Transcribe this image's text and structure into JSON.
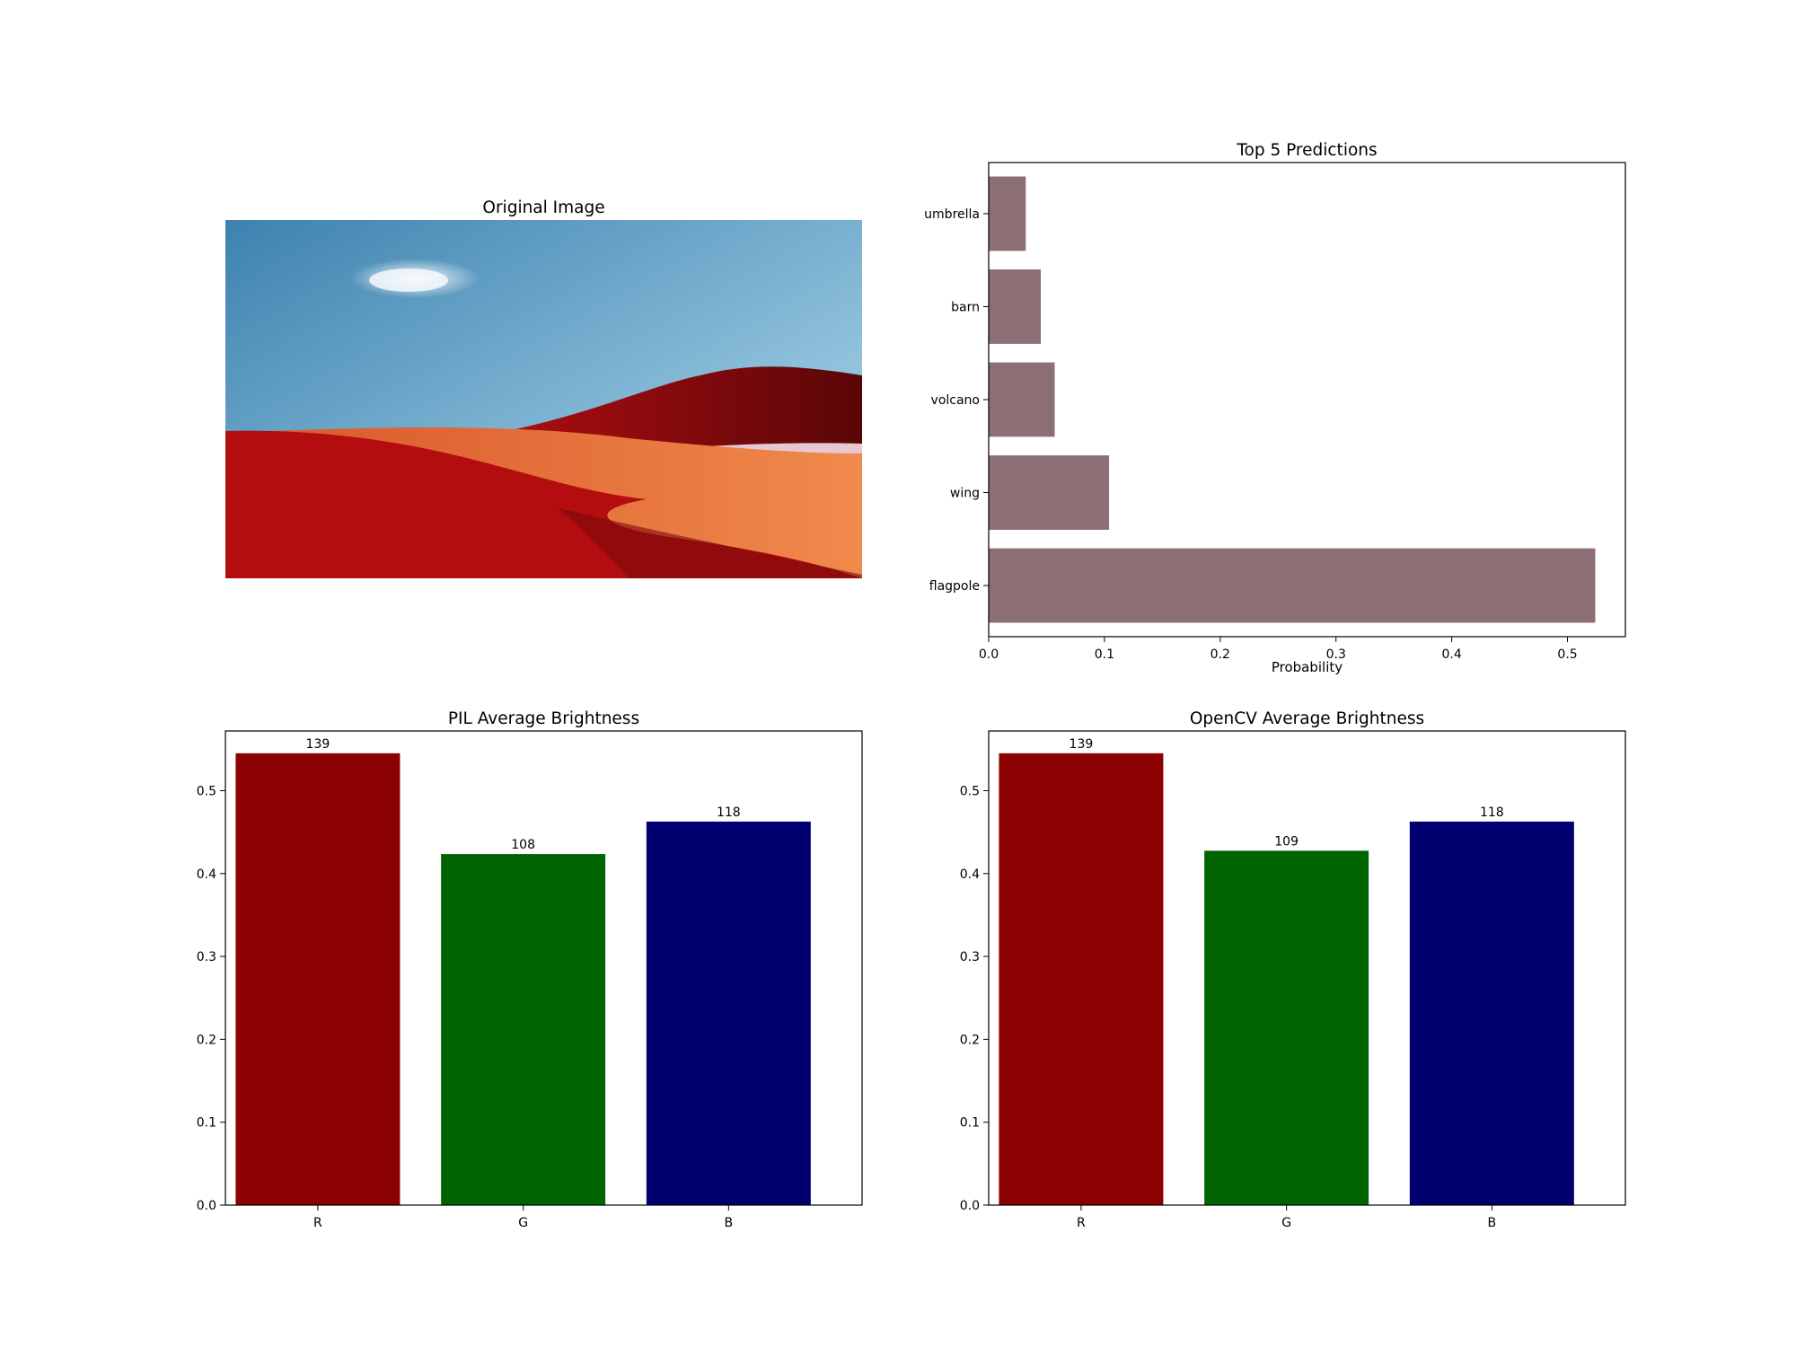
{
  "figure": {
    "image_panel": {
      "title": "Original Image"
    },
    "colors": {
      "prediction_bar": "#8B6F75",
      "sky_top": "#3d82b0",
      "sky_bottom": "#a9d6ea",
      "hill_dark": "#a40d12",
      "field_orange": "#e8703c"
    }
  },
  "chart_data": [
    {
      "type": "bar",
      "orientation": "horizontal",
      "title": "Top 5 Predictions",
      "xlabel": "Probability",
      "ylabel": "",
      "categories": [
        "flagpole",
        "wing",
        "volcano",
        "barn",
        "umbrella"
      ],
      "values": [
        0.524,
        0.104,
        0.057,
        0.045,
        0.032
      ],
      "xlim": [
        0,
        0.55
      ],
      "xticks": [
        "0.0",
        "0.1",
        "0.2",
        "0.3",
        "0.4",
        "0.5"
      ],
      "xtick_values": [
        0,
        0.1,
        0.2,
        0.3,
        0.4,
        0.5
      ],
      "grid": false
    },
    {
      "type": "bar",
      "title": "PIL Average Brightness",
      "xlabel": "",
      "ylabel": "",
      "categories": [
        "R",
        "G",
        "B"
      ],
      "values": [
        0.5451,
        0.4235,
        0.4627
      ],
      "data_labels": [
        "139",
        "108",
        "118"
      ],
      "colors": [
        "#8B0000",
        "#006400",
        "#000070"
      ],
      "ylim": [
        0,
        0.572
      ],
      "yticks": [
        "0.0",
        "0.1",
        "0.2",
        "0.3",
        "0.4",
        "0.5"
      ],
      "ytick_values": [
        0,
        0.1,
        0.2,
        0.3,
        0.4,
        0.5
      ],
      "grid": false
    },
    {
      "type": "bar",
      "title": "OpenCV Average Brightness",
      "xlabel": "",
      "ylabel": "",
      "categories": [
        "R",
        "G",
        "B"
      ],
      "values": [
        0.5451,
        0.4275,
        0.4627
      ],
      "data_labels": [
        "139",
        "109",
        "118"
      ],
      "colors": [
        "#8B0000",
        "#006400",
        "#000070"
      ],
      "ylim": [
        0,
        0.572
      ],
      "yticks": [
        "0.0",
        "0.1",
        "0.2",
        "0.3",
        "0.4",
        "0.5"
      ],
      "ytick_values": [
        0,
        0.1,
        0.2,
        0.3,
        0.4,
        0.5
      ],
      "grid": false
    }
  ]
}
